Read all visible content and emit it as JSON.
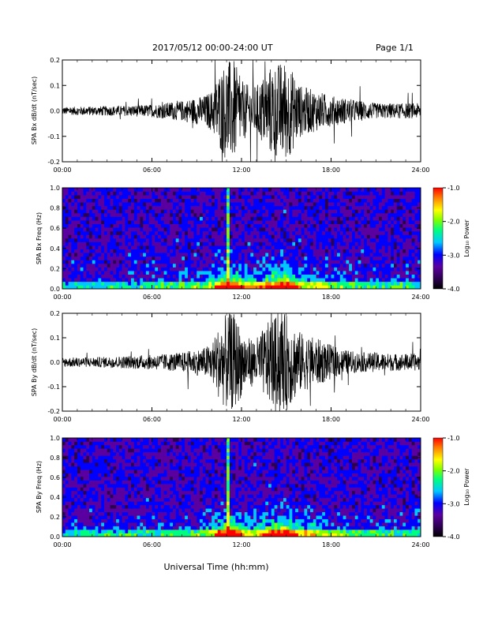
{
  "header": {
    "title": "2017/05/12  00:00-24:00 UT",
    "page": "Page 1/1"
  },
  "chart_data": [
    {
      "type": "line",
      "ylabel": "SPA Bx dB/dt (nT/sec)",
      "xlim": [
        0,
        24
      ],
      "ylim": [
        -0.2,
        0.2
      ],
      "yticks": [
        "0.2",
        "0.1",
        "0.0",
        "-0.1",
        "-0.2"
      ],
      "xtick_labels": [
        "00:00",
        "06:00",
        "12:00",
        "18:00",
        "24:00"
      ],
      "amplitude_envelope": {
        "hours": [
          0,
          2,
          4,
          6,
          8,
          9.5,
          10,
          10.5,
          11,
          11.5,
          12,
          12.5,
          13,
          14,
          15,
          16,
          17,
          18,
          19,
          20,
          21,
          22,
          23,
          24
        ],
        "amplitude": [
          0.015,
          0.018,
          0.02,
          0.025,
          0.04,
          0.06,
          0.08,
          0.15,
          0.2,
          0.2,
          0.12,
          0.1,
          0.1,
          0.18,
          0.2,
          0.1,
          0.08,
          0.06,
          0.05,
          0.04,
          0.03,
          0.03,
          0.03,
          0.03
        ]
      }
    },
    {
      "type": "heatmap",
      "ylabel": "SPA Bx Freq (Hz)",
      "xlim": [
        0,
        24
      ],
      "ylim": [
        0,
        1.0
      ],
      "yticks": [
        "1.0",
        "0.8",
        "0.6",
        "0.4",
        "0.2",
        "0.0"
      ],
      "xtick_labels": [
        "00:00",
        "06:00",
        "12:00",
        "18:00",
        "24:00"
      ],
      "colorbar": {
        "label": "Log₁₀ Power",
        "range": [
          -4.0,
          -1.0
        ],
        "ticks": [
          "-1.0",
          "-2.0",
          "-3.0",
          "-4.0"
        ]
      }
    },
    {
      "type": "line",
      "ylabel": "SPA By dB/dt (nT/sec)",
      "xlim": [
        0,
        24
      ],
      "ylim": [
        -0.2,
        0.2
      ],
      "yticks": [
        "0.2",
        "0.1",
        "0.0",
        "-0.1",
        "-0.2"
      ],
      "xtick_labels": [
        "00:00",
        "06:00",
        "12:00",
        "18:00",
        "24:00"
      ],
      "amplitude_envelope": {
        "hours": [
          0,
          2,
          4,
          6,
          8,
          9.5,
          10,
          10.5,
          11,
          11.5,
          12,
          12.5,
          13,
          14,
          15,
          16,
          17,
          18,
          19,
          20,
          21,
          22,
          23,
          24
        ],
        "amplitude": [
          0.02,
          0.02,
          0.025,
          0.03,
          0.04,
          0.06,
          0.08,
          0.15,
          0.2,
          0.2,
          0.14,
          0.1,
          0.1,
          0.18,
          0.2,
          0.12,
          0.1,
          0.07,
          0.05,
          0.04,
          0.04,
          0.035,
          0.035,
          0.035
        ]
      }
    },
    {
      "type": "heatmap",
      "ylabel": "SPA By Freq (Hz)",
      "xlim": [
        0,
        24
      ],
      "ylim": [
        0,
        1.0
      ],
      "yticks": [
        "1.0",
        "0.8",
        "0.6",
        "0.4",
        "0.2",
        "0.0"
      ],
      "xtick_labels": [
        "00:00",
        "06:00",
        "12:00",
        "18:00",
        "24:00"
      ],
      "colorbar": {
        "label": "Log₁₀ Power",
        "range": [
          -4.0,
          -1.0
        ],
        "ticks": [
          "-1.0",
          "-2.0",
          "-3.0",
          "-4.0"
        ]
      }
    }
  ],
  "xlabel": "Universal Time (hh:mm)",
  "colors": {
    "trace": "#000000",
    "spectrogram_background": "#000000",
    "colormap": [
      "#000000",
      "#2b0050",
      "#5a00a0",
      "#0000ff",
      "#00c8ff",
      "#00ff80",
      "#80ff00",
      "#ffff00",
      "#ff8000",
      "#ff0000"
    ]
  }
}
